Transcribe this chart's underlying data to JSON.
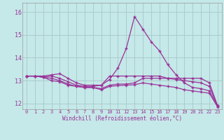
{
  "xlabel": "Windchill (Refroidissement éolien,°C)",
  "bg_color": "#c5e8e8",
  "grid_color": "#aacccc",
  "line_color": "#993399",
  "xlim": [
    -0.5,
    23.5
  ],
  "ylim": [
    11.75,
    16.4
  ],
  "yticks": [
    12,
    13,
    14,
    15,
    16
  ],
  "xticks": [
    0,
    1,
    2,
    3,
    4,
    5,
    6,
    7,
    8,
    9,
    10,
    11,
    12,
    13,
    14,
    15,
    16,
    17,
    18,
    19,
    20,
    21,
    22,
    23
  ],
  "series": [
    [
      13.2,
      13.2,
      13.2,
      13.25,
      13.3,
      13.1,
      12.9,
      12.8,
      12.8,
      12.8,
      13.2,
      13.2,
      13.2,
      13.2,
      13.2,
      13.2,
      13.2,
      13.1,
      13.1,
      13.1,
      13.1,
      13.1,
      12.9,
      11.9
    ],
    [
      13.2,
      13.2,
      13.15,
      13.2,
      13.1,
      12.95,
      12.8,
      12.75,
      12.75,
      12.8,
      13.05,
      13.55,
      14.4,
      15.8,
      15.25,
      14.7,
      14.3,
      13.7,
      13.25,
      12.9,
      12.7,
      12.65,
      12.55,
      11.9
    ],
    [
      13.2,
      13.2,
      13.15,
      13.1,
      13.0,
      12.85,
      12.75,
      12.7,
      12.7,
      12.65,
      12.8,
      12.85,
      12.85,
      12.9,
      13.1,
      13.1,
      13.1,
      13.1,
      13.05,
      13.0,
      12.95,
      12.9,
      12.75,
      11.9
    ],
    [
      13.2,
      13.2,
      13.15,
      13.0,
      12.95,
      12.8,
      12.75,
      12.7,
      12.7,
      12.6,
      12.75,
      12.78,
      12.8,
      12.82,
      12.9,
      12.85,
      12.8,
      12.75,
      12.7,
      12.6,
      12.55,
      12.5,
      12.45,
      11.85
    ]
  ]
}
